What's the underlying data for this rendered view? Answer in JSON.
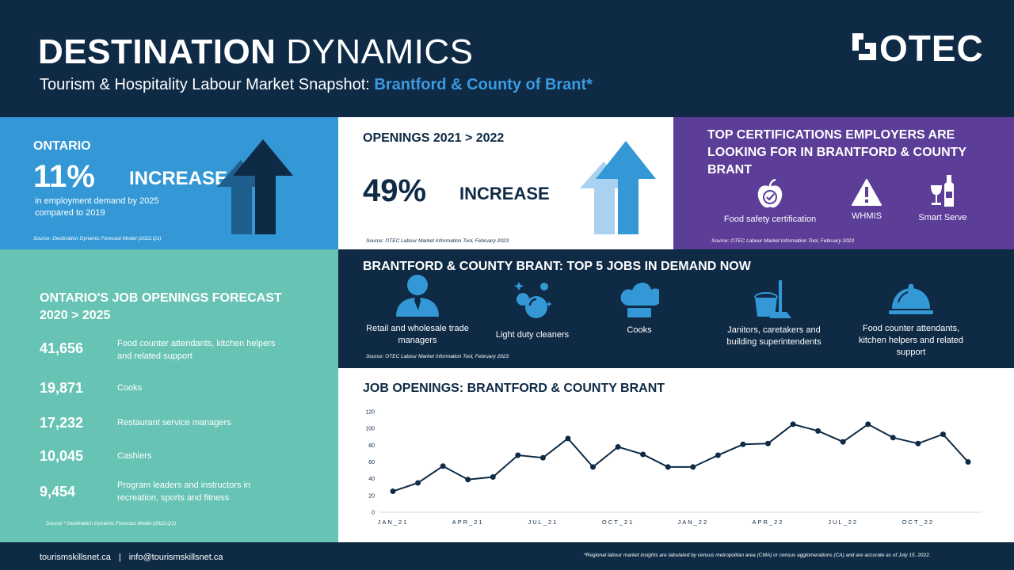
{
  "header": {
    "title_bold": "DESTINATION",
    "title_light": "DYNAMICS",
    "subtitle_prefix": "Tourism & Hospitality Labour Market Snapshot:",
    "subtitle_highlight": "Brantford & County of Brant*",
    "logo_text": "OTEC",
    "logo_icon": "otec-logo-icon"
  },
  "ontario": {
    "label": "ONTARIO",
    "percent": "11%",
    "increase": "INCREASE",
    "description": "in employment demand by 2025 compared to 2019",
    "source": "Source: Destination Dynamic Forecast Model (2022,Q1)",
    "icon": "up-arrows-icon"
  },
  "openings": {
    "label": "OPENINGS 2021 > 2022",
    "percent": "49%",
    "increase": "INCREASE",
    "source": "Source: OTEC Labour Market Information Tool, February 2023",
    "icon": "up-arrows-icon"
  },
  "certifications": {
    "title": "TOP CERTIFICATIONS EMPLOYERS ARE LOOKING FOR IN BRANTFORD & COUNTY BRANT",
    "items": [
      {
        "label": "Food safety certification",
        "icon": "apple-check-icon"
      },
      {
        "label": "WHMIS",
        "icon": "warning-icon"
      },
      {
        "label": "Smart Serve",
        "icon": "wine-bottle-icon"
      }
    ],
    "source": "Source: OTEC Labour Market Information Tool, February 2023"
  },
  "forecast": {
    "title": "ONTARIO'S JOB OPENINGS FORECAST 2020 > 2025",
    "rows": [
      {
        "value": "41,656",
        "label": "Food counter attendants, kitchen helpers and related support"
      },
      {
        "value": "19,871",
        "label": "Cooks"
      },
      {
        "value": "17,232",
        "label": "Restaurant service managers"
      },
      {
        "value": "10,045",
        "label": "Cashiers"
      },
      {
        "value": "9,454",
        "label": "Program leaders and instructors in recreation, sports and fitness"
      }
    ],
    "source": "Source * Destination Dynamic Forecast Model (2022,Q1)"
  },
  "top_jobs": {
    "title": "BRANTFORD & COUNTY BRANT:  TOP 5 JOBS IN DEMAND NOW",
    "items": [
      {
        "label": "Retail and wholesale trade managers",
        "icon": "manager-icon"
      },
      {
        "label": "Light duty cleaners",
        "icon": "bubbles-icon"
      },
      {
        "label": "Cooks",
        "icon": "chef-hat-icon"
      },
      {
        "label": "Janitors, caretakers and building superintendents",
        "icon": "mop-bucket-icon"
      },
      {
        "label": "Food counter attendants, kitchen helpers and related support",
        "icon": "cloche-icon"
      }
    ],
    "source": "Source: OTEC Labour Market Information Tool, February 2023"
  },
  "chart_data": {
    "type": "line",
    "title": "JOB OPENINGS: BRANTFORD & COUNTY BRANT",
    "x": [
      "2021-01",
      "2021-02",
      "2021-03",
      "2021-04",
      "2021-05",
      "2021-06",
      "2021-07",
      "2021-08",
      "2021-09",
      "2021-10",
      "2021-11",
      "2021-12",
      "2022-01",
      "2022-02",
      "2022-03",
      "2022-04",
      "2022-05",
      "2022-06",
      "2022-07",
      "2022-08",
      "2022-09",
      "2022-10",
      "2022-11",
      "2022-12"
    ],
    "x_tick_labels": [
      "JAN_21",
      "APR_21",
      "JUL_21",
      "OCT_21",
      "JAN_22",
      "APR_22",
      "JUL_22",
      "OCT_22"
    ],
    "x_tick_indices": [
      0,
      3,
      6,
      9,
      12,
      15,
      18,
      21
    ],
    "series": [
      {
        "values": [
          25,
          35,
          55,
          39,
          42,
          68,
          65,
          88,
          54,
          78,
          69,
          54,
          54,
          68,
          81,
          82,
          105,
          97,
          84,
          105,
          89,
          82,
          93,
          60
        ]
      }
    ],
    "y_ticks": [
      0,
      20,
      40,
      60,
      80,
      100,
      120
    ],
    "ylim": [
      0,
      120
    ],
    "grid": false,
    "line_color": "#0e2a45"
  },
  "footer": {
    "website": "tourismskillsnet.ca",
    "separator": "|",
    "email": "info@tourismskillsnet.ca",
    "note": "*Regional labour market insights are tabulated by census metropolitan area (CMA) or census agglomerations (CA) and are accurate as of July 15, 2022."
  },
  "colors": {
    "navy": "#0e2a45",
    "blue": "#3398d5",
    "purple": "#5c3d98",
    "teal": "#67c3b4",
    "highlight": "#3b9ae0"
  }
}
